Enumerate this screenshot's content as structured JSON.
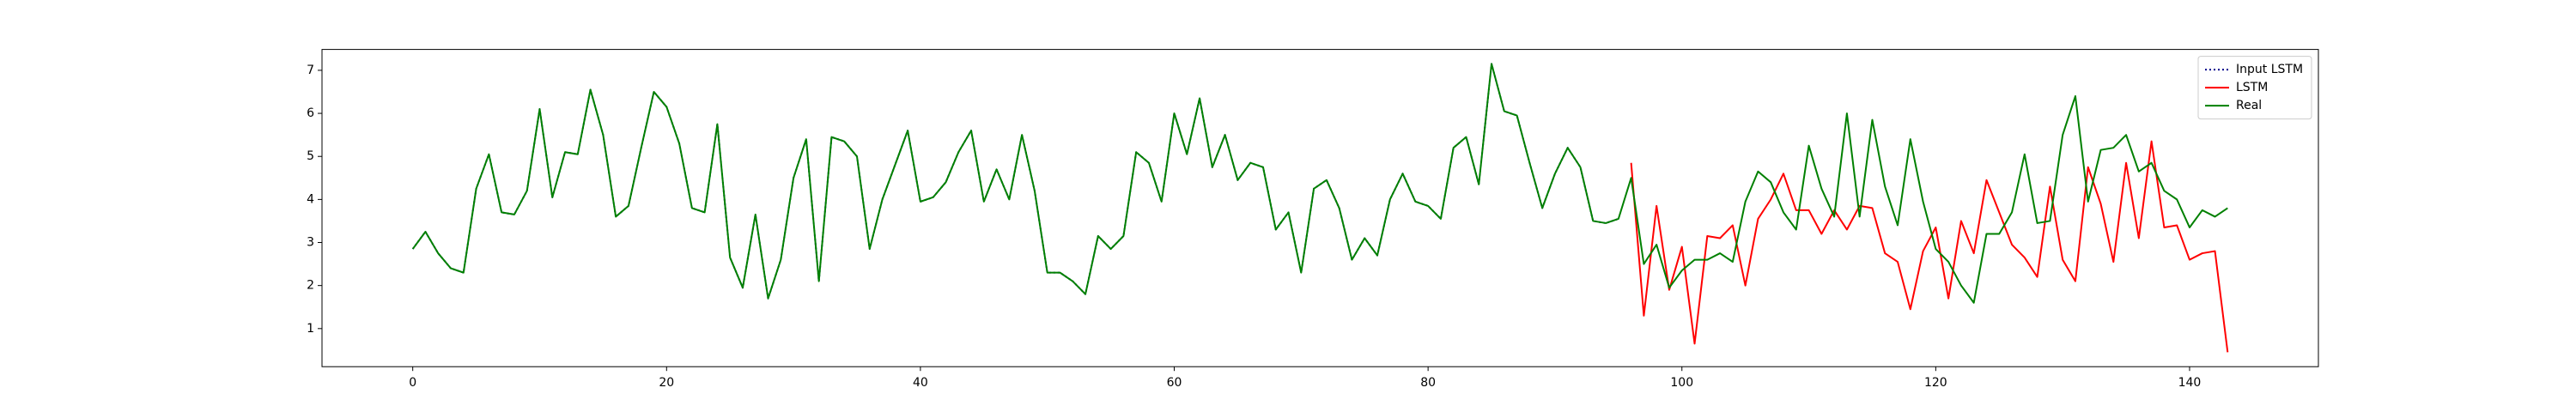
{
  "chart_data": {
    "type": "line",
    "x": [
      0,
      1,
      2,
      3,
      4,
      5,
      6,
      7,
      8,
      9,
      10,
      11,
      12,
      13,
      14,
      15,
      16,
      17,
      18,
      19,
      20,
      21,
      22,
      23,
      24,
      25,
      26,
      27,
      28,
      29,
      30,
      31,
      32,
      33,
      34,
      35,
      36,
      37,
      38,
      39,
      40,
      41,
      42,
      43,
      44,
      45,
      46,
      47,
      48,
      49,
      50,
      51,
      52,
      53,
      54,
      55,
      56,
      57,
      58,
      59,
      60,
      61,
      62,
      63,
      64,
      65,
      66,
      67,
      68,
      69,
      70,
      71,
      72,
      73,
      74,
      75,
      76,
      77,
      78,
      79,
      80,
      81,
      82,
      83,
      84,
      85,
      86,
      87,
      88,
      89,
      90,
      91,
      92,
      93,
      94,
      95,
      96,
      97,
      98,
      99,
      100,
      101,
      102,
      103,
      104,
      105,
      106,
      107,
      108,
      109,
      110,
      111,
      112,
      113,
      114,
      115,
      116,
      117,
      118,
      119,
      120,
      121,
      122,
      123,
      124,
      125,
      126,
      127,
      128,
      129,
      130,
      131,
      132,
      133,
      134,
      135,
      136,
      137,
      138,
      139,
      140,
      141,
      142,
      143
    ],
    "series": [
      {
        "name": "Input LSTM",
        "color": "#00008b",
        "linestyle": "dotted",
        "values": [
          2.85,
          3.25,
          2.75,
          2.4,
          2.3,
          4.25,
          5.05,
          3.7,
          3.65,
          4.2,
          6.1,
          4.05,
          5.1,
          5.05,
          6.55,
          5.5,
          3.6,
          3.85,
          5.2,
          6.5,
          6.15,
          5.3,
          3.8,
          3.7,
          5.75,
          2.65,
          1.95,
          3.65,
          1.7,
          2.6,
          4.5,
          5.4,
          2.1,
          5.45,
          5.35,
          5.0,
          2.85,
          4.0,
          4.8,
          5.6,
          3.95,
          4.05,
          4.4,
          5.1,
          5.6,
          3.95,
          4.7,
          4.0,
          5.5,
          4.2,
          2.3,
          2.3,
          2.1,
          1.8,
          3.15,
          2.85,
          3.15,
          5.1,
          4.85,
          3.95,
          6.0,
          5.05,
          6.35,
          4.75,
          5.5,
          4.45,
          4.85,
          4.75,
          3.3,
          3.7,
          2.3,
          4.25,
          4.45,
          3.8,
          2.6,
          3.1,
          2.7,
          4.0,
          4.6,
          3.95,
          3.85,
          3.55,
          5.2,
          5.45,
          4.35,
          7.15,
          6.05,
          5.95,
          4.85,
          3.8,
          4.6,
          5.2,
          4.75,
          3.5,
          3.45,
          3.55,
          null,
          null,
          null,
          null,
          null,
          null,
          null,
          null,
          null,
          null,
          null,
          null,
          null,
          null,
          null,
          null,
          null,
          null,
          null,
          null,
          null,
          null,
          null,
          null,
          null,
          null,
          null,
          null,
          null,
          null,
          null,
          null,
          null,
          null,
          null,
          null,
          null,
          null,
          null,
          null,
          null,
          null,
          null,
          null,
          null,
          null,
          null,
          null
        ]
      },
      {
        "name": "LSTM",
        "color": "#ff0000",
        "linestyle": "solid",
        "values": [
          null,
          null,
          null,
          null,
          null,
          null,
          null,
          null,
          null,
          null,
          null,
          null,
          null,
          null,
          null,
          null,
          null,
          null,
          null,
          null,
          null,
          null,
          null,
          null,
          null,
          null,
          null,
          null,
          null,
          null,
          null,
          null,
          null,
          null,
          null,
          null,
          null,
          null,
          null,
          null,
          null,
          null,
          null,
          null,
          null,
          null,
          null,
          null,
          null,
          null,
          null,
          null,
          null,
          null,
          null,
          null,
          null,
          null,
          null,
          null,
          null,
          null,
          null,
          null,
          null,
          null,
          null,
          null,
          null,
          null,
          null,
          null,
          null,
          null,
          null,
          null,
          null,
          null,
          null,
          null,
          null,
          null,
          null,
          null,
          null,
          null,
          null,
          null,
          null,
          null,
          null,
          null,
          null,
          null,
          null,
          null,
          4.85,
          1.3,
          3.85,
          1.9,
          2.9,
          0.65,
          3.15,
          3.1,
          3.4,
          2.0,
          3.55,
          4.0,
          4.6,
          3.75,
          3.75,
          3.2,
          3.75,
          3.3,
          3.85,
          3.8,
          2.75,
          2.55,
          1.45,
          2.8,
          3.35,
          1.7,
          3.5,
          2.75,
          4.45,
          3.7,
          2.95,
          2.65,
          2.2,
          4.3,
          2.6,
          2.1,
          4.75,
          3.9,
          2.55,
          4.85,
          3.1,
          5.35,
          3.35,
          3.4,
          2.6,
          2.75,
          2.8,
          0.45
        ]
      },
      {
        "name": "Real",
        "color": "#008000",
        "linestyle": "solid",
        "values": [
          2.85,
          3.25,
          2.75,
          2.4,
          2.3,
          4.25,
          5.05,
          3.7,
          3.65,
          4.2,
          6.1,
          4.05,
          5.1,
          5.05,
          6.55,
          5.5,
          3.6,
          3.85,
          5.2,
          6.5,
          6.15,
          5.3,
          3.8,
          3.7,
          5.75,
          2.65,
          1.95,
          3.65,
          1.7,
          2.6,
          4.5,
          5.4,
          2.1,
          5.45,
          5.35,
          5.0,
          2.85,
          4.0,
          4.8,
          5.6,
          3.95,
          4.05,
          4.4,
          5.1,
          5.6,
          3.95,
          4.7,
          4.0,
          5.5,
          4.2,
          2.3,
          2.3,
          2.1,
          1.8,
          3.15,
          2.85,
          3.15,
          5.1,
          4.85,
          3.95,
          6.0,
          5.05,
          6.35,
          4.75,
          5.5,
          4.45,
          4.85,
          4.75,
          3.3,
          3.7,
          2.3,
          4.25,
          4.45,
          3.8,
          2.6,
          3.1,
          2.7,
          4.0,
          4.6,
          3.95,
          3.85,
          3.55,
          5.2,
          5.45,
          4.35,
          7.15,
          6.05,
          5.95,
          4.85,
          3.8,
          4.6,
          5.2,
          4.75,
          3.5,
          3.45,
          3.55,
          4.5,
          2.5,
          2.95,
          1.95,
          2.35,
          2.6,
          2.6,
          2.75,
          2.55,
          3.95,
          4.65,
          4.4,
          3.7,
          3.3,
          5.25,
          4.25,
          3.6,
          6.0,
          3.6,
          5.85,
          4.3,
          3.4,
          5.4,
          3.95,
          2.85,
          2.55,
          2.0,
          1.6,
          3.2,
          3.2,
          3.7,
          5.05,
          3.45,
          3.5,
          5.5,
          6.4,
          3.95,
          5.15,
          5.2,
          5.5,
          4.65,
          4.85,
          4.2,
          4.0,
          3.35,
          3.75,
          3.6,
          3.8
        ]
      }
    ],
    "xlim": [
      -7.15,
      150.15
    ],
    "ylim": [
      0.115,
      7.485
    ],
    "xticks": [
      0,
      20,
      40,
      60,
      80,
      100,
      120,
      140
    ],
    "yticks": [
      1,
      2,
      3,
      4,
      5,
      6,
      7
    ],
    "grid": false,
    "legend": "upper right"
  }
}
